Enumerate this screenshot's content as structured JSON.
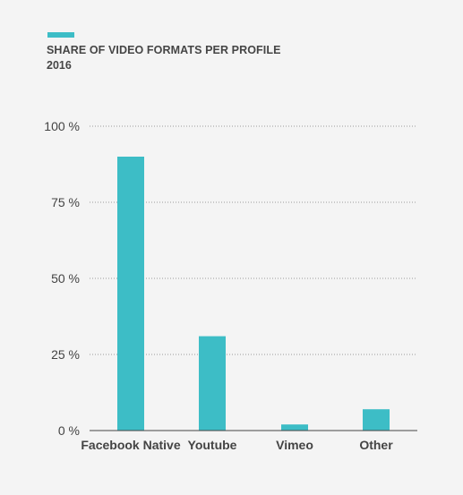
{
  "colors": {
    "background": "#f4f4f4",
    "bar": "#3dbdc6",
    "accent": "#3dbdc6",
    "grid": "#9a9a9a",
    "axis": "#444444"
  },
  "chart_data": {
    "type": "bar",
    "title": "SHARE OF VIDEO FORMATS PER PROFILE",
    "subtitle": "2016",
    "categories": [
      "Facebook Native",
      "Youtube",
      "Vimeo",
      "Other"
    ],
    "values": [
      90,
      31,
      2,
      7
    ],
    "ylim": [
      0,
      100
    ],
    "yticks": [
      0,
      25,
      50,
      75,
      100
    ],
    "ytick_labels": [
      "0 %",
      "25 %",
      "50 %",
      "75 %",
      "100 %"
    ],
    "xlabel": "",
    "ylabel": "",
    "grid": true,
    "grid_style": "dotted",
    "legend": "none"
  }
}
